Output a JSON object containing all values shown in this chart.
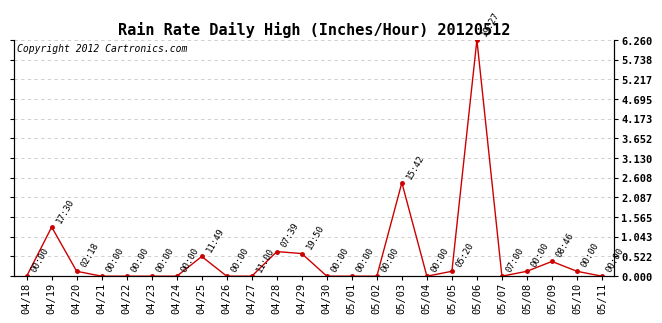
{
  "title": "Rain Rate Daily High (Inches/Hour) 20120512",
  "copyright": "Copyright 2012 Cartronics.com",
  "x_labels": [
    "04/18",
    "04/19",
    "04/20",
    "04/21",
    "04/22",
    "04/23",
    "04/24",
    "04/25",
    "04/26",
    "04/27",
    "04/28",
    "04/29",
    "04/30",
    "05/01",
    "05/02",
    "05/03",
    "05/04",
    "05/05",
    "05/06",
    "05/07",
    "05/08",
    "05/09",
    "05/10",
    "05/11"
  ],
  "y_values": [
    0.0,
    1.302,
    0.13,
    0.0,
    0.0,
    0.0,
    0.0,
    0.522,
    0.0,
    0.0,
    0.652,
    0.6,
    0.0,
    0.0,
    0.0,
    2.478,
    0.0,
    0.13,
    6.26,
    0.0,
    0.13,
    0.391,
    0.13,
    0.0
  ],
  "annotations": [
    {
      "idx": 0,
      "label": "00:00"
    },
    {
      "idx": 1,
      "label": "17:30"
    },
    {
      "idx": 2,
      "label": "02:18"
    },
    {
      "idx": 3,
      "label": "00:00"
    },
    {
      "idx": 4,
      "label": "00:00"
    },
    {
      "idx": 5,
      "label": "00:00"
    },
    {
      "idx": 6,
      "label": "00:00"
    },
    {
      "idx": 7,
      "label": "11:49"
    },
    {
      "idx": 8,
      "label": "00:00"
    },
    {
      "idx": 9,
      "label": "11:00"
    },
    {
      "idx": 10,
      "label": "07:39"
    },
    {
      "idx": 11,
      "label": "19:50"
    },
    {
      "idx": 12,
      "label": "00:00"
    },
    {
      "idx": 13,
      "label": "00:00"
    },
    {
      "idx": 14,
      "label": "00:00"
    },
    {
      "idx": 15,
      "label": "15:42"
    },
    {
      "idx": 16,
      "label": "00:00"
    },
    {
      "idx": 17,
      "label": "05:20"
    },
    {
      "idx": 18,
      "label": "19:27"
    },
    {
      "idx": 19,
      "label": "07:00"
    },
    {
      "idx": 20,
      "label": "00:00"
    },
    {
      "idx": 21,
      "label": "08:46"
    },
    {
      "idx": 22,
      "label": "00:00"
    },
    {
      "idx": 23,
      "label": "00:00"
    }
  ],
  "y_ticks": [
    0.0,
    0.522,
    1.043,
    1.565,
    2.087,
    2.608,
    3.13,
    3.652,
    4.173,
    4.695,
    5.217,
    5.738,
    6.26
  ],
  "line_color": "#cc0000",
  "marker_color": "#cc0000",
  "bg_color": "#ffffff",
  "grid_color": "#c8c8c8",
  "ylim": [
    0.0,
    6.26
  ],
  "title_fontsize": 11,
  "annotation_fontsize": 6.5,
  "tick_fontsize": 7.5,
  "copyright_fontsize": 7
}
